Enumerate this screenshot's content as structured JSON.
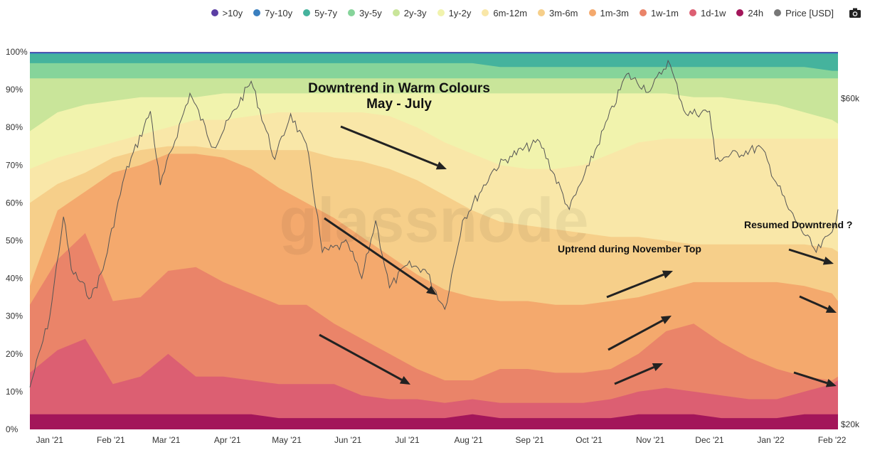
{
  "legend": [
    {
      "label": ">10y",
      "color": "#5b3ea4"
    },
    {
      "label": "7y-10y",
      "color": "#3a7fbf"
    },
    {
      "label": "5y-7y",
      "color": "#45b39d"
    },
    {
      "label": "3y-5y",
      "color": "#86d49a"
    },
    {
      "label": "2y-3y",
      "color": "#c9e59a"
    },
    {
      "label": "1y-2y",
      "color": "#f1f3ad"
    },
    {
      "label": "6m-12m",
      "color": "#f9e7a8"
    },
    {
      "label": "3m-6m",
      "color": "#f6cf8a"
    },
    {
      "label": "1m-3m",
      "color": "#f4a96d"
    },
    {
      "label": "1w-1m",
      "color": "#ea8469"
    },
    {
      "label": "1d-1w",
      "color": "#dc5f72"
    },
    {
      "label": "24h",
      "color": "#a3165a"
    },
    {
      "label": "Price [USD]",
      "color": "#777777"
    }
  ],
  "camera_icon": "camera-icon",
  "watermark": "glassnode",
  "annotations": {
    "title_line1": "Downtrend in Warm Colours",
    "title_line2": "May - July",
    "uptrend": "Uptrend during November Top",
    "resumed": "Resumed Downtrend ?"
  },
  "chart_data": {
    "type": "area",
    "stacked": true,
    "normalized": true,
    "x": [
      "Dec 22 '20",
      "Jan 5 '21",
      "Jan 19 '21",
      "Feb 2 '21",
      "Feb 16 '21",
      "Mar 2 '21",
      "Mar 16 '21",
      "Mar 30 '21",
      "Apr 13 '21",
      "Apr 27 '21",
      "May 11 '21",
      "May 25 '21",
      "Jun 8 '21",
      "Jun 22 '21",
      "Jul 6 '21",
      "Jul 20 '21",
      "Aug 3 '21",
      "Aug 17 '21",
      "Aug 31 '21",
      "Sep 14 '21",
      "Sep 28 '21",
      "Oct 12 '21",
      "Oct 26 '21",
      "Nov 9 '21",
      "Nov 23 '21",
      "Dec 7 '21",
      "Dec 21 '21",
      "Jan 4 '22",
      "Jan 18 '22",
      "Feb 1 '22",
      "Feb 4 '22"
    ],
    "cumulative_percent_boundaries": [
      {
        "name": "24h",
        "values": [
          4,
          4,
          4,
          4,
          4,
          4,
          4,
          4,
          4,
          3,
          3,
          3,
          3,
          3,
          3,
          3,
          4,
          3,
          3,
          3,
          3,
          3,
          4,
          4,
          4,
          3,
          3,
          3,
          4,
          4,
          4
        ]
      },
      {
        "name": "1d-1w",
        "values": [
          15,
          21,
          24,
          12,
          14,
          20,
          14,
          14,
          13,
          12,
          12,
          12,
          9,
          8,
          8,
          7,
          8,
          7,
          7,
          7,
          7,
          8,
          10,
          11,
          10,
          9,
          8,
          8,
          10,
          12,
          13
        ]
      },
      {
        "name": "1w-1m",
        "values": [
          33,
          45,
          52,
          34,
          35,
          42,
          43,
          39,
          36,
          33,
          33,
          28,
          24,
          20,
          16,
          13,
          13,
          16,
          16,
          15,
          15,
          16,
          20,
          26,
          28,
          23,
          19,
          16,
          14,
          13,
          14
        ]
      },
      {
        "name": "1m-3m",
        "values": [
          38,
          58,
          63,
          68,
          70,
          73,
          73,
          72,
          69,
          64,
          60,
          56,
          51,
          46,
          41,
          37,
          35,
          34,
          34,
          33,
          33,
          34,
          35,
          37,
          39,
          39,
          39,
          39,
          38,
          36,
          34
        ]
      },
      {
        "name": "3m-6m",
        "values": [
          60,
          65,
          68,
          72,
          74,
          75,
          75,
          74,
          74,
          74,
          74,
          72,
          71,
          69,
          66,
          62,
          58,
          55,
          54,
          53,
          52,
          51,
          51,
          50,
          49,
          49,
          49,
          49,
          49,
          48,
          47
        ]
      },
      {
        "name": "6m-12m",
        "values": [
          69,
          72,
          74,
          76,
          78,
          80,
          82,
          82,
          83,
          84,
          84,
          84,
          84,
          83,
          80,
          76,
          73,
          70,
          69,
          69,
          70,
          73,
          76,
          77,
          77,
          77,
          77,
          77,
          77,
          77,
          77
        ]
      },
      {
        "name": "1y-2y",
        "values": [
          79,
          84,
          86,
          87,
          88,
          88,
          88,
          89,
          89,
          89,
          89,
          89,
          89,
          89,
          89,
          89,
          89,
          89,
          89,
          89,
          89,
          89,
          89,
          89,
          88,
          88,
          87,
          86,
          84,
          82,
          81
        ]
      },
      {
        "name": "2y-3y",
        "values": [
          93,
          93,
          93,
          93,
          93,
          93,
          93,
          93,
          93,
          93,
          93,
          93,
          93,
          93,
          93,
          93,
          93,
          93,
          93,
          93,
          93,
          93,
          93,
          93,
          93,
          93,
          93,
          93,
          93,
          93,
          93
        ]
      },
      {
        "name": "3y-5y",
        "values": [
          97,
          97,
          97,
          97,
          97,
          97,
          97,
          97,
          97,
          97,
          97,
          97,
          97,
          97,
          97,
          97,
          97,
          96,
          96,
          96,
          96,
          96,
          96,
          96,
          96,
          96,
          96,
          96,
          96,
          95,
          95
        ]
      },
      {
        "name": "5y-7y",
        "values": [
          99.5,
          99.5,
          99.5,
          99.5,
          99.5,
          99.5,
          99.5,
          99.5,
          99.5,
          99.5,
          99.5,
          99.5,
          99.5,
          99.5,
          99.5,
          99.5,
          99.5,
          99.5,
          99.5,
          99.5,
          99.5,
          99.5,
          99.5,
          99.5,
          99.5,
          99.5,
          99.5,
          99.5,
          99.5,
          99.5,
          99.5
        ]
      },
      {
        "name": "7y-10y",
        "values": [
          99.8,
          99.8,
          99.8,
          99.8,
          99.8,
          99.8,
          99.8,
          99.8,
          99.8,
          99.8,
          99.8,
          99.8,
          99.8,
          99.8,
          99.8,
          99.8,
          99.8,
          99.8,
          99.8,
          99.8,
          99.8,
          99.8,
          99.8,
          99.8,
          99.8,
          99.8,
          99.8,
          99.8,
          99.8,
          99.8,
          99.8
        ]
      },
      {
        "name": ">10y",
        "values": [
          100,
          100,
          100,
          100,
          100,
          100,
          100,
          100,
          100,
          100,
          100,
          100,
          100,
          100,
          100,
          100,
          100,
          100,
          100,
          100,
          100,
          100,
          100,
          100,
          100,
          100,
          100,
          100,
          100,
          100,
          100
        ]
      }
    ],
    "price": {
      "name": "Price [USD]",
      "axis": "right",
      "scale": "log",
      "ylim": [
        20000,
        70000
      ],
      "x": [
        "Dec 22 '20",
        "Jan 1 '21",
        "Jan 8 '21",
        "Jan 12 '21",
        "Jan 22 '21",
        "Jan 28 '21",
        "Feb 8 '21",
        "Feb 21 '21",
        "Feb 26 '21",
        "Mar 13 '21",
        "Mar 25 '21",
        "Apr 13 '21",
        "Apr 25 '21",
        "May 3 '21",
        "May 12 '21",
        "May 19 '21",
        "Jun 1 '21",
        "Jun 8 '21",
        "Jun 15 '21",
        "Jun 22 '21",
        "Jul 1 '21",
        "Jul 10 '21",
        "Jul 20 '21",
        "Jul 29 '21",
        "Aug 14 '21",
        "Aug 22 '21",
        "Sep 6 '21",
        "Sep 21 '21",
        "Oct 1 '21",
        "Oct 20 '21",
        "Nov 1 '21",
        "Nov 10 '21",
        "Nov 19 '21",
        "Dec 1 '21",
        "Dec 4 '21",
        "Dec 27 '21",
        "Jan 10 '22",
        "Jan 24 '22",
        "Feb 1 '22",
        "Feb 4 '22"
      ],
      "values": [
        23000,
        29000,
        40500,
        34000,
        31000,
        34000,
        46500,
        57500,
        45000,
        61000,
        51000,
        63500,
        49000,
        57000,
        50000,
        36000,
        37000,
        33000,
        40000,
        32000,
        34500,
        34000,
        29800,
        40000,
        47500,
        49500,
        52000,
        41500,
        48000,
        65000,
        61500,
        68000,
        57000,
        57500,
        49000,
        51000,
        41500,
        36000,
        38500,
        41500
      ]
    },
    "y_ticks": [
      "0%",
      "10%",
      "20%",
      "30%",
      "40%",
      "50%",
      "60%",
      "70%",
      "80%",
      "90%",
      "100%"
    ],
    "x_ticks": [
      "Jan '21",
      "Feb '21",
      "Mar '21",
      "Apr '21",
      "May '21",
      "Jun '21",
      "Jul '21",
      "Aug '21",
      "Sep '21",
      "Oct '21",
      "Nov '21",
      "Dec '21",
      "Jan '22",
      "Feb '22"
    ],
    "right_ticks": [
      "$60k",
      "$20k"
    ],
    "grid": false,
    "legend_position": "top-right"
  }
}
